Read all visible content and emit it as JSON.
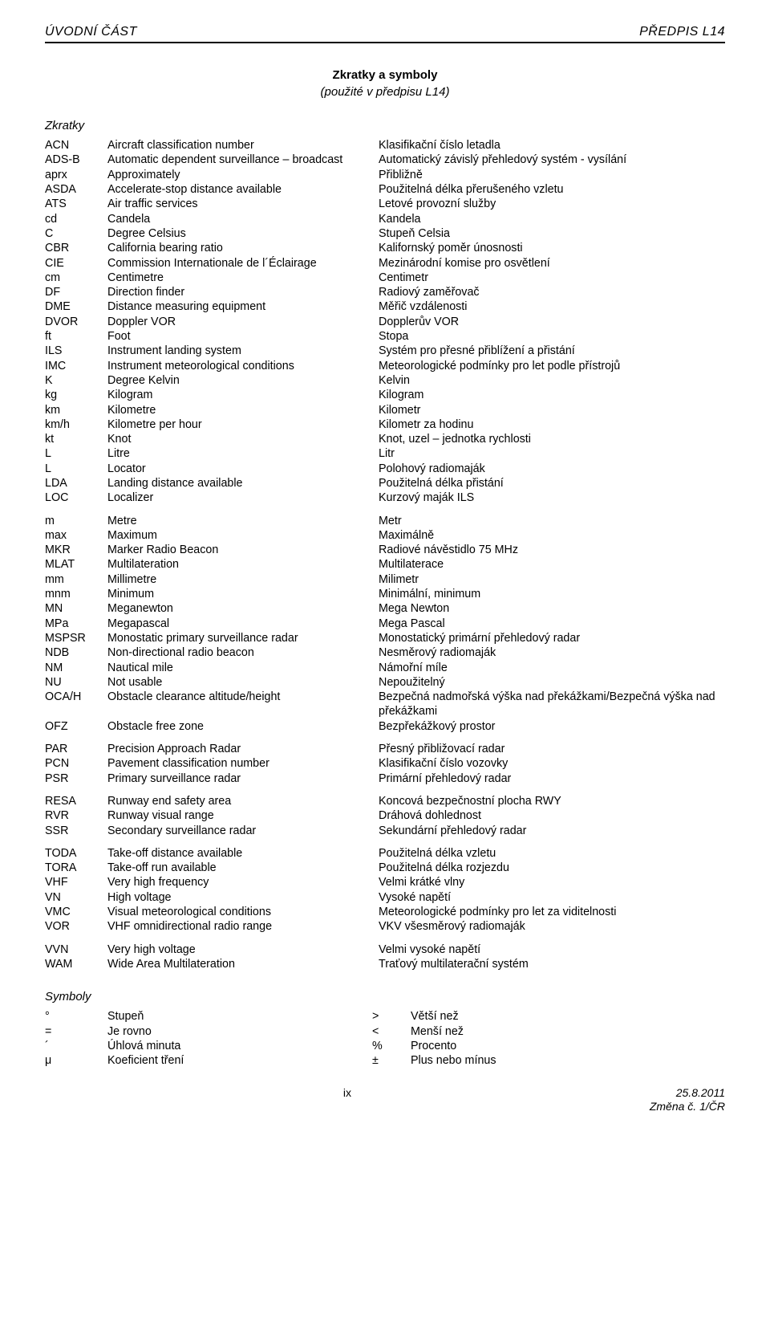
{
  "header": {
    "left": "ÚVODNÍ ČÁST",
    "right": "PŘEDPIS L14"
  },
  "title": {
    "line1": "Zkratky a symboly",
    "line2": "(použité v předpisu L14)"
  },
  "sections": {
    "zkratky": "Zkratky",
    "symboly": "Symboly"
  },
  "abbr": [
    {
      "a": "ACN",
      "en": "Aircraft classification number",
      "cz": "Klasifikační číslo letadla"
    },
    {
      "a": "ADS-B",
      "en": "Automatic dependent surveillance – broadcast",
      "cz": "Automatický závislý přehledový systém - vysílání"
    },
    {
      "a": "aprx",
      "en": "Approximately",
      "cz": "Přibližně"
    },
    {
      "a": "ASDA",
      "en": "Accelerate-stop distance available",
      "cz": "Použitelná délka přerušeného vzletu"
    },
    {
      "a": "ATS",
      "en": "Air traffic services",
      "cz": "Letové provozní služby"
    },
    {
      "a": "cd",
      "en": "Candela",
      "cz": "Kandela"
    },
    {
      "a": "C",
      "en": "Degree Celsius",
      "cz": "Stupeň Celsia"
    },
    {
      "a": "CBR",
      "en": "California bearing ratio",
      "cz": "Kalifornský poměr únosnosti"
    },
    {
      "a": "CIE",
      "en": "Commission Internationale de l´Éclairage",
      "cz": "Mezinárodní komise pro osvětlení"
    },
    {
      "a": "cm",
      "en": "Centimetre",
      "cz": "Centimetr"
    },
    {
      "a": "DF",
      "en": "Direction finder",
      "cz": "Radiový zaměřovač"
    },
    {
      "a": "DME",
      "en": "Distance measuring equipment",
      "cz": "Měřič vzdálenosti"
    },
    {
      "a": "DVOR",
      "en": "Doppler VOR",
      "cz": "Dopplerův VOR"
    },
    {
      "a": "ft",
      "en": "Foot",
      "cz": "Stopa"
    },
    {
      "a": "ILS",
      "en": "Instrument landing system",
      "cz": "Systém pro přesné přiblížení a přistání"
    },
    {
      "a": "IMC",
      "en": "Instrument meteorological conditions",
      "cz": "Meteorologické podmínky pro let podle přístrojů"
    },
    {
      "a": "K",
      "en": "Degree Kelvin",
      "cz": "Kelvin"
    },
    {
      "a": "kg",
      "en": "Kilogram",
      "cz": "Kilogram"
    },
    {
      "a": "km",
      "en": "Kilometre",
      "cz": "Kilometr"
    },
    {
      "a": "km/h",
      "en": "Kilometre per hour",
      "cz": "Kilometr za hodinu"
    },
    {
      "a": "kt",
      "en": "Knot",
      "cz": "Knot, uzel – jednotka rychlosti"
    },
    {
      "a": "L",
      "en": "Litre",
      "cz": "Litr"
    },
    {
      "a": "L",
      "en": "Locator",
      "cz": "Polohový radiomaják"
    },
    {
      "a": "LDA",
      "en": "Landing distance available",
      "cz": "Použitelná délka přistání"
    },
    {
      "a": "LOC",
      "en": "Localizer",
      "cz": "Kurzový maják ILS"
    },
    {
      "gap": true
    },
    {
      "a": "m",
      "en": "Metre",
      "cz": "Metr"
    },
    {
      "a": "max",
      "en": "Maximum",
      "cz": "Maximálně"
    },
    {
      "a": "MKR",
      "en": "Marker Radio Beacon",
      "cz": "Radiové návěstidlo 75 MHz"
    },
    {
      "a": "MLAT",
      "en": "Multilateration",
      "cz": "Multilaterace"
    },
    {
      "a": "mm",
      "en": "Millimetre",
      "cz": "Milimetr"
    },
    {
      "a": "mnm",
      "en": "Minimum",
      "cz": "Minimální, minimum"
    },
    {
      "a": "MN",
      "en": "Meganewton",
      "cz": "Mega Newton"
    },
    {
      "a": "MPa",
      "en": "Megapascal",
      "cz": "Mega Pascal"
    },
    {
      "a": "MSPSR",
      "en": "Monostatic primary surveillance radar",
      "cz": "Monostatický primární přehledový radar"
    },
    {
      "a": "NDB",
      "en": "Non-directional radio beacon",
      "cz": "Nesměrový radiomaják"
    },
    {
      "a": "NM",
      "en": "Nautical mile",
      "cz": "Námořní míle"
    },
    {
      "a": "NU",
      "en": "Not usable",
      "cz": "Nepoužitelný"
    },
    {
      "a": "OCA/H",
      "en": "Obstacle clearance altitude/height",
      "cz": "Bezpečná nadmořská výška nad překážkami/Bezpečná výška nad překážkami"
    },
    {
      "a": "OFZ",
      "en": "Obstacle free zone",
      "cz": "Bezpřekážkový prostor"
    },
    {
      "gap": true
    },
    {
      "a": "PAR",
      "en": "Precision Approach Radar",
      "cz": "Přesný přibližovací radar"
    },
    {
      "a": "PCN",
      "en": "Pavement classification number",
      "cz": "Klasifikační číslo vozovky"
    },
    {
      "a": "PSR",
      "en": "Primary surveillance radar",
      "cz": "Primární přehledový radar"
    },
    {
      "gap": true
    },
    {
      "a": "RESA",
      "en": "Runway end safety area",
      "cz": "Koncová bezpečnostní plocha RWY"
    },
    {
      "a": "RVR",
      "en": "Runway visual range",
      "cz": "Dráhová dohlednost"
    },
    {
      "a": "SSR",
      "en": "Secondary surveillance radar",
      "cz": "Sekundární přehledový radar"
    },
    {
      "gap": true
    },
    {
      "a": "TODA",
      "en": "Take-off distance available",
      "cz": "Použitelná délka vzletu"
    },
    {
      "a": "TORA",
      "en": "Take-off run available",
      "cz": "Použitelná délka rozjezdu"
    },
    {
      "a": "VHF",
      "en": "Very high frequency",
      "cz": "Velmi krátké vlny"
    },
    {
      "a": "VN",
      "en": "High voltage",
      "cz": "Vysoké napětí"
    },
    {
      "a": "VMC",
      "en": "Visual meteorological conditions",
      "cz": "Meteorologické podmínky pro let za viditelnosti"
    },
    {
      "a": "VOR",
      "en": "VHF omnidirectional radio range",
      "cz": "VKV všesměrový radiomaják"
    },
    {
      "gap": true
    },
    {
      "a": "VVN",
      "en": "Very high voltage",
      "cz": "Velmi vysoké napětí"
    },
    {
      "a": "WAM",
      "en": "Wide Area Multilateration",
      "cz": "Traťový multilaterační systém"
    }
  ],
  "symbols": [
    {
      "s": "°",
      "en": "Stupeň",
      "s2": ">",
      "cz": "Větší než"
    },
    {
      "s": "=",
      "en": "Je rovno",
      "s2": "<",
      "cz": "Menší než"
    },
    {
      "s": "´",
      "en": "Úhlová minuta",
      "s2": "%",
      "cz": "Procento"
    },
    {
      "s": "μ",
      "en": "Koeficient tření",
      "s2": "±",
      "cz": "Plus nebo mínus"
    }
  ],
  "footer": {
    "pagenum": "ix",
    "date": "25.8.2011",
    "rev": "Změna č. 1/ČR"
  }
}
